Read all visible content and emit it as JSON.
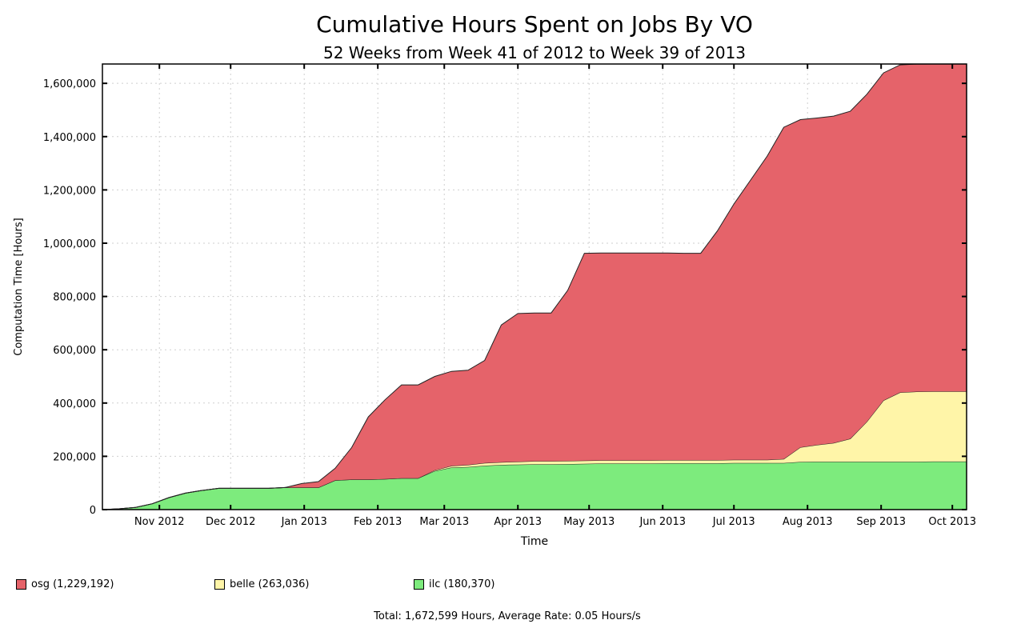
{
  "chart_data": {
    "type": "area",
    "stacked": true,
    "cumulative": true,
    "title": "Cumulative Hours Spent on Jobs By VO",
    "subtitle": "52 Weeks from Week 41 of 2012 to Week 39 of 2013",
    "xlabel": "Time",
    "ylabel": "Computation Time [Hours]",
    "ylim": [
      0,
      1672599
    ],
    "yticks": [
      0,
      200000,
      400000,
      600000,
      800000,
      1000000,
      1200000,
      1400000,
      1600000
    ],
    "ytick_labels": [
      "0",
      "200,000",
      "400,000",
      "600,000",
      "800,000",
      "1,000,000",
      "1,200,000",
      "1,400,000",
      "1,600,000"
    ],
    "xlim": [
      "2012-10-08",
      "2013-10-07"
    ],
    "xticks": [
      "2012-11-01",
      "2012-12-01",
      "2013-01-01",
      "2013-02-01",
      "2013-03-01",
      "2013-04-01",
      "2013-05-01",
      "2013-06-01",
      "2013-07-01",
      "2013-08-01",
      "2013-09-01",
      "2013-10-01"
    ],
    "xtick_labels": [
      "Nov 2012",
      "Dec 2012",
      "Jan 2013",
      "Feb 2013",
      "Mar 2013",
      "Apr 2013",
      "May 2013",
      "Jun 2013",
      "Jul 2013",
      "Aug 2013",
      "Sep 2013",
      "Oct 2013"
    ],
    "grid": true,
    "legend_position": "bottom",
    "x": [
      "2012-10-08",
      "2012-10-15",
      "2012-10-22",
      "2012-10-29",
      "2012-11-05",
      "2012-11-12",
      "2012-11-19",
      "2012-11-26",
      "2012-12-03",
      "2012-12-10",
      "2012-12-17",
      "2012-12-24",
      "2012-12-31",
      "2013-01-07",
      "2013-01-14",
      "2013-01-21",
      "2013-01-28",
      "2013-02-04",
      "2013-02-11",
      "2013-02-18",
      "2013-02-25",
      "2013-03-04",
      "2013-03-11",
      "2013-03-18",
      "2013-03-25",
      "2013-04-01",
      "2013-04-08",
      "2013-04-15",
      "2013-04-22",
      "2013-04-29",
      "2013-05-06",
      "2013-05-13",
      "2013-05-20",
      "2013-05-27",
      "2013-06-03",
      "2013-06-10",
      "2013-06-17",
      "2013-06-24",
      "2013-07-01",
      "2013-07-08",
      "2013-07-15",
      "2013-07-22",
      "2013-07-29",
      "2013-08-05",
      "2013-08-12",
      "2013-08-19",
      "2013-08-26",
      "2013-09-02",
      "2013-09-09",
      "2013-09-16",
      "2013-09-23",
      "2013-09-30",
      "2013-10-07"
    ],
    "series": [
      {
        "name": "ilc",
        "label": "ilc (180,370)",
        "color": "#7deb7d",
        "values": [
          0,
          3000,
          8000,
          22000,
          45000,
          62000,
          72000,
          80000,
          80000,
          80000,
          80000,
          83000,
          83000,
          83000,
          110000,
          113000,
          113000,
          115000,
          118000,
          118000,
          145000,
          158000,
          160000,
          165000,
          168000,
          169000,
          170000,
          170000,
          171000,
          172000,
          173000,
          173000,
          173000,
          173000,
          174000,
          174000,
          174000,
          174000,
          175000,
          175000,
          175000,
          175000,
          179000,
          180000,
          180000,
          180000,
          180000,
          180000,
          180000,
          180000,
          180370,
          180370,
          180370
        ]
      },
      {
        "name": "belle",
        "label": "belle (263,036)",
        "color": "#fff5a8",
        "values": [
          0,
          0,
          0,
          0,
          0,
          0,
          0,
          0,
          0,
          0,
          0,
          0,
          0,
          0,
          0,
          0,
          0,
          0,
          0,
          0,
          3000,
          6000,
          8000,
          10000,
          10000,
          11000,
          12000,
          12000,
          12000,
          12000,
          12000,
          12000,
          12000,
          12000,
          12000,
          12000,
          12000,
          12000,
          12000,
          12000,
          12000,
          15000,
          55000,
          63000,
          70000,
          86000,
          150000,
          230000,
          260000,
          263036,
          263036,
          263036,
          263036
        ]
      },
      {
        "name": "osg",
        "label": "osg (1,229,192)",
        "color": "#e5636a",
        "values": [
          0,
          0,
          0,
          0,
          0,
          0,
          0,
          0,
          0,
          0,
          0,
          0,
          15000,
          22000,
          45000,
          120000,
          235000,
          297000,
          350000,
          350000,
          352000,
          355000,
          355000,
          385000,
          515000,
          556000,
          556000,
          556000,
          640000,
          778000,
          778000,
          778000,
          778000,
          778000,
          777000,
          776000,
          776000,
          860000,
          960000,
          1050000,
          1140000,
          1245000,
          1230000,
          1227000,
          1227000,
          1229192,
          1229192,
          1229192,
          1229192,
          1229192,
          1229192,
          1229192,
          1229192
        ]
      }
    ]
  },
  "footer": {
    "total_text": "Total: 1,672,599 Hours, Average Rate: 0.05 Hours/s"
  }
}
